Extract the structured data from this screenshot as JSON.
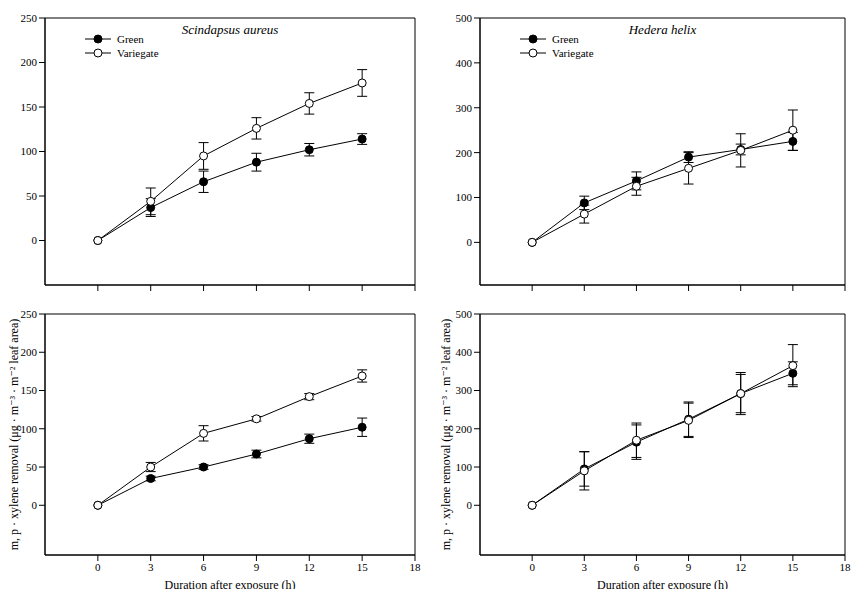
{
  "chart_data": [
    {
      "type": "line",
      "title": "Scindapsus aureus",
      "legend": "upper left",
      "tick_labels": "y",
      "x": [
        0,
        3,
        6,
        9,
        12,
        15
      ],
      "xlim": [
        -3,
        18
      ],
      "xticks": [
        0,
        3,
        6,
        9,
        12,
        15,
        18
      ],
      "ylim": [
        -50,
        250
      ],
      "yticks": [
        0,
        50,
        100,
        150,
        200,
        250
      ],
      "series": [
        {
          "name": "Green",
          "color": "#000000",
          "marker": "filled_circle",
          "values": [
            0,
            37,
            66,
            88,
            102,
            114
          ],
          "errors": [
            0,
            10,
            12,
            10,
            7,
            6
          ]
        },
        {
          "name": "Variegate",
          "color": "#000000",
          "marker": "open_circle",
          "values": [
            0,
            44,
            95,
            126,
            154,
            177
          ],
          "errors": [
            0,
            15,
            15,
            12,
            12,
            15
          ]
        }
      ]
    },
    {
      "type": "line",
      "xlabel": "Duration after exposure (h)",
      "ylabel": "m, p · xylene removal (μg · m⁻³ · m⁻² leaf area)",
      "x": [
        0,
        3,
        6,
        9,
        12,
        15
      ],
      "xlim": [
        -3,
        18
      ],
      "xticks": [
        0,
        3,
        6,
        9,
        12,
        15,
        18
      ],
      "ylim": [
        -65,
        250
      ],
      "yticks": [
        0,
        50,
        100,
        150,
        200,
        250
      ],
      "series": [
        {
          "name": "Green",
          "color": "#000000",
          "marker": "filled_circle",
          "values": [
            0,
            35,
            50,
            67,
            87,
            102
          ],
          "errors": [
            0,
            3,
            3,
            5,
            6,
            12
          ]
        },
        {
          "name": "Variegate",
          "color": "#000000",
          "marker": "open_circle",
          "values": [
            0,
            50,
            94,
            113,
            142,
            169
          ],
          "errors": [
            0,
            6,
            10,
            3,
            4,
            8
          ]
        }
      ]
    },
    {
      "type": "line",
      "title": "Hedera helix",
      "legend": "upper left",
      "tick_labels": "y",
      "x": [
        0,
        3,
        6,
        9,
        12,
        15
      ],
      "xlim": [
        -3,
        18
      ],
      "xticks": [
        0,
        3,
        6,
        9,
        12,
        15,
        18
      ],
      "ylim": [
        -95,
        500
      ],
      "yticks": [
        0,
        100,
        200,
        300,
        400,
        500
      ],
      "series": [
        {
          "name": "Green",
          "color": "#000000",
          "marker": "filled_circle",
          "values": [
            0,
            88,
            137,
            190,
            207,
            225
          ],
          "errors": [
            0,
            15,
            20,
            12,
            12,
            20
          ]
        },
        {
          "name": "Variegate",
          "color": "#000000",
          "marker": "open_circle",
          "values": [
            0,
            63,
            125,
            165,
            205,
            250
          ],
          "errors": [
            0,
            20,
            20,
            35,
            37,
            45
          ]
        }
      ]
    },
    {
      "type": "line",
      "xlabel": "Duration after exposure (h)",
      "ylabel": "m, p · xylene removal (μg · m⁻³ · m⁻² leaf area)",
      "x": [
        0,
        3,
        6,
        9,
        12,
        15
      ],
      "xlim": [
        -3,
        18
      ],
      "xticks": [
        0,
        3,
        6,
        9,
        12,
        15,
        18
      ],
      "ylim": [
        -130,
        500
      ],
      "yticks": [
        0,
        100,
        200,
        300,
        400,
        500
      ],
      "series": [
        {
          "name": "Green",
          "color": "#000000",
          "marker": "filled_circle",
          "values": [
            0,
            95,
            165,
            225,
            292,
            345
          ],
          "errors": [
            0,
            45,
            45,
            45,
            55,
            30
          ]
        },
        {
          "name": "Variegate",
          "color": "#000000",
          "marker": "open_circle",
          "values": [
            0,
            90,
            170,
            222,
            292,
            365
          ],
          "errors": [
            0,
            50,
            45,
            45,
            50,
            55
          ]
        }
      ]
    }
  ]
}
